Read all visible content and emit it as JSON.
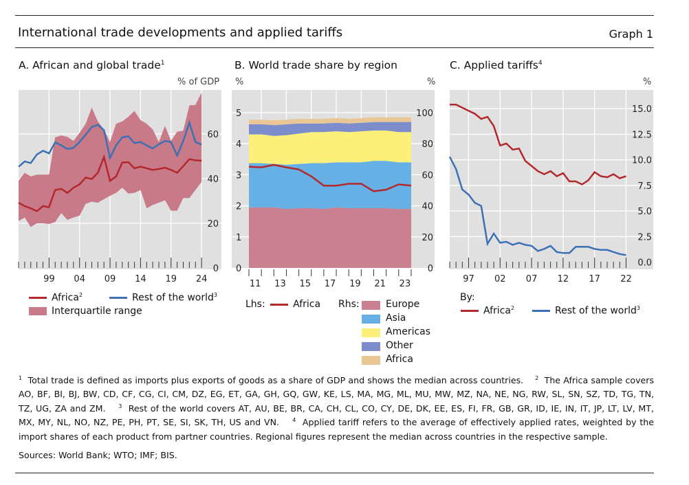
{
  "header": {
    "title": "International trade developments and applied tariffs",
    "graph_number": "Graph 1"
  },
  "colors": {
    "background": "#e0e0e0",
    "grid": "#ffffff",
    "africa": "#b3282d",
    "rest_of_world": "#3c70b4",
    "iqr": "#c87a89",
    "europe": "#c98090",
    "asia": "#66b0e5",
    "americas": "#fbf17a",
    "other": "#7d8dcc",
    "africa_share": "#e9c693"
  },
  "panels": {
    "a": {
      "title": "A. African and global trade",
      "title_sup": "1",
      "unit": "% of GDP",
      "legend": {
        "africa": "Africa",
        "africa_sup": "2",
        "row": "Rest of the world",
        "row_sup": "3",
        "iqr": "Interquartile range"
      }
    },
    "b": {
      "title": "B. World trade share by region",
      "unit_left": "%",
      "unit_right": "%",
      "legend": {
        "lhs": "Lhs:",
        "africa_line": "Africa",
        "rhs": "Rhs:",
        "europe": "Europe",
        "asia": "Asia",
        "americas": "Americas",
        "other": "Other",
        "africa": "Africa"
      }
    },
    "c": {
      "title": "C. Applied tariffs",
      "title_sup": "4",
      "unit": "%",
      "legend": {
        "by": "By:",
        "africa": "Africa",
        "africa_sup": "2",
        "row": "Rest of the world",
        "row_sup": "3"
      }
    }
  },
  "chart_data": [
    {
      "type": "line",
      "panel": "A",
      "ylabel": "% of GDP",
      "ylim": [
        0,
        80
      ],
      "xlim": [
        1994,
        2024
      ],
      "y_ticks": [
        "0",
        "20",
        "40",
        "60"
      ],
      "y_tick_values": [
        0,
        20,
        40,
        60
      ],
      "x_tick_labels": [
        "99",
        "04",
        "09",
        "14",
        "19",
        "24"
      ],
      "x_tick_values": [
        1999,
        2004,
        2009,
        2014,
        2019,
        2024
      ],
      "x": [
        1994,
        1995,
        1996,
        1997,
        1998,
        1999,
        2000,
        2001,
        2002,
        2003,
        2004,
        2005,
        2006,
        2007,
        2008,
        2009,
        2010,
        2011,
        2012,
        2013,
        2014,
        2015,
        2016,
        2017,
        2018,
        2019,
        2020,
        2021,
        2022,
        2023,
        2024
      ],
      "series": [
        {
          "name": "Interquartile range",
          "kind": "band",
          "lower": [
            21,
            22.6,
            18.3,
            20,
            20,
            19.7,
            20.5,
            24.6,
            21.5,
            22.6,
            23.4,
            28.7,
            29.7,
            29.2,
            30.8,
            32.3,
            33.6,
            35.9,
            33.3,
            33.6,
            34.9,
            26.7,
            28.2,
            29.2,
            30.3,
            25.6,
            25.6,
            31.3,
            31.3,
            34.9,
            38.5
          ],
          "upper": [
            39,
            42.6,
            41,
            41.8,
            41.8,
            41.8,
            58.5,
            59.3,
            58.7,
            56.9,
            60.5,
            64.6,
            71.8,
            65.6,
            62,
            56.4,
            64.6,
            65.6,
            67.7,
            70.3,
            66.2,
            64.6,
            62,
            56.4,
            63.6,
            56.9,
            61,
            61.5,
            72.8,
            73,
            78.5
          ]
        },
        {
          "name": "Africa",
          "values": [
            29.2,
            27.7,
            26.7,
            25.4,
            27.7,
            27.2,
            34.9,
            35.4,
            33.6,
            35.9,
            37.4,
            40.5,
            39.8,
            42.6,
            49.7,
            39,
            41,
            47.2,
            47.4,
            44.6,
            45.4,
            44.6,
            43.9,
            44.3,
            44.9,
            43.9,
            42.6,
            45.6,
            48.7,
            48.2,
            48
          ]
        },
        {
          "name": "Rest of the world",
          "values": [
            45.3,
            47.7,
            47,
            50.8,
            52.5,
            51.3,
            56.2,
            54.9,
            53.3,
            53.8,
            56.4,
            59.7,
            63.1,
            64.1,
            61.7,
            49.2,
            54.9,
            58.5,
            59,
            55.9,
            56.4,
            54.9,
            53.5,
            55.4,
            56.9,
            56.4,
            50.3,
            56.9,
            65.1,
            56.4,
            55.2
          ]
        }
      ],
      "grid": true,
      "legend": "bottom"
    },
    {
      "type": "area",
      "panel": "B",
      "ylabel_left": "%",
      "ylabel_right": "%",
      "ylim_left": [
        0,
        5
      ],
      "ylim_right": [
        0,
        100
      ],
      "y_ticks_left": [
        "0",
        "1",
        "2",
        "3",
        "4",
        "5"
      ],
      "y_ticks_right": [
        "0",
        "20",
        "40",
        "60",
        "80",
        "100"
      ],
      "x_tick_labels": [
        "11",
        "13",
        "15",
        "17",
        "19",
        "21",
        "23"
      ],
      "x_tick_values": [
        2011,
        2013,
        2015,
        2017,
        2019,
        2021,
        2023
      ],
      "x": [
        2010,
        2011,
        2012,
        2013,
        2014,
        2015,
        2016,
        2017,
        2018,
        2019,
        2020,
        2021,
        2022,
        2023
      ],
      "series": [
        {
          "name": "Europe",
          "axis": "right",
          "values": [
            39,
            39,
            39,
            38,
            38.5,
            38.5,
            38,
            39,
            38.5,
            38.5,
            38.5,
            38.5,
            38,
            38
          ]
        },
        {
          "name": "Asia",
          "axis": "right",
          "values": [
            28.5,
            28.5,
            28,
            28.5,
            28.5,
            29,
            29.5,
            29,
            29.5,
            29.5,
            30.5,
            30.5,
            30,
            30
          ]
        },
        {
          "name": "Americas",
          "axis": "right",
          "values": [
            18.5,
            18.5,
            18,
            19,
            19.5,
            20,
            20,
            20,
            19.5,
            20,
            19.5,
            19.5,
            19.5,
            19.5
          ]
        },
        {
          "name": "Other",
          "axis": "right",
          "values": [
            6.5,
            6.5,
            7,
            7,
            6.5,
            5.5,
            5.5,
            5.5,
            5.5,
            5.5,
            5.5,
            5.5,
            6.5,
            6.5
          ]
        },
        {
          "name": "Africa",
          "axis": "right",
          "values": [
            3,
            3,
            3,
            3,
            3,
            3,
            3,
            3,
            3,
            3,
            3,
            3,
            3,
            3
          ]
        },
        {
          "name": "Africa",
          "axis": "left",
          "kind": "line",
          "values": [
            3.26,
            3.24,
            3.32,
            3.24,
            3.17,
            2.95,
            2.65,
            2.65,
            2.71,
            2.71,
            2.47,
            2.52,
            2.69,
            2.65
          ]
        }
      ],
      "grid": true,
      "legend": "bottom"
    },
    {
      "type": "line",
      "panel": "C",
      "ylabel": "%",
      "ylim": [
        0,
        16
      ],
      "xlim": [
        1994,
        2022
      ],
      "y_ticks": [
        "0.0",
        "2.5",
        "5.0",
        "7.5",
        "10.0",
        "12.5",
        "15.0"
      ],
      "y_tick_values": [
        0,
        2.5,
        5,
        7.5,
        10,
        12.5,
        15
      ],
      "x_tick_labels": [
        "97",
        "02",
        "07",
        "12",
        "17",
        "22"
      ],
      "x_tick_values": [
        1997,
        2002,
        2007,
        2012,
        2017,
        2022
      ],
      "x": [
        1994,
        1995,
        1996,
        1997,
        1998,
        1999,
        2000,
        2001,
        2002,
        2003,
        2004,
        2005,
        2006,
        2007,
        2008,
        2009,
        2010,
        2011,
        2012,
        2013,
        2014,
        2015,
        2016,
        2017,
        2018,
        2019,
        2020,
        2021,
        2022
      ],
      "series": [
        {
          "name": "Africa",
          "values": [
            15.4,
            15.4,
            15.1,
            14.8,
            14.5,
            14,
            14.2,
            13.3,
            11.4,
            11.6,
            11,
            11.1,
            9.9,
            9.4,
            8.9,
            8.6,
            8.9,
            8.4,
            8.7,
            7.9,
            7.9,
            7.6,
            8,
            8.8,
            8.4,
            8.3,
            8.6,
            8.2,
            8.4
          ]
        },
        {
          "name": "Rest of the world",
          "values": [
            10.3,
            9.1,
            7.1,
            6.6,
            5.8,
            5.5,
            1.8,
            2.8,
            1.9,
            2,
            1.7,
            1.9,
            1.7,
            1.6,
            1.1,
            1.3,
            1.6,
            1,
            0.9,
            0.9,
            1.5,
            1.5,
            1.5,
            1.3,
            1.2,
            1.2,
            1,
            0.8,
            0.7
          ]
        }
      ],
      "grid": true,
      "legend": "bottom"
    }
  ],
  "footnotes": {
    "n1": "1",
    "t1": "Total trade is defined as imports plus exports of goods as a share of GDP and shows the median across countries.",
    "n2": "2",
    "t2": "The Africa sample covers AO, BF, BI, BJ, BW, CD, CF, CG, CI, CM, DZ, EG, ET, GA, GH, GQ, GW, KE, LS, MA, MG, ML, MU, MW, MZ, NA, NE, NG, RW, SL, SN, SZ, TD, TG, TN, TZ, UG, ZA and ZM.",
    "n3": "3",
    "t3": "Rest of the world covers AT, AU, BE, BR, CA, CH, CL, CO, CY, DE, DK, EE, ES, FI, FR, GB, GR, ID, IE, IN, IT, JP, LT, LV, MT, MX, MY, NL, NO, NZ, PE, PH, PT, SE, SI, SK, TH, US and VN.",
    "n4": "4",
    "t4": "Applied tariff refers to the average of effectively applied rates, weighted by the import shares of each product from partner countries. Regional figures represent the median across countries in the respective sample."
  },
  "sources": "Sources: World Bank; WTO; IMF; BIS."
}
